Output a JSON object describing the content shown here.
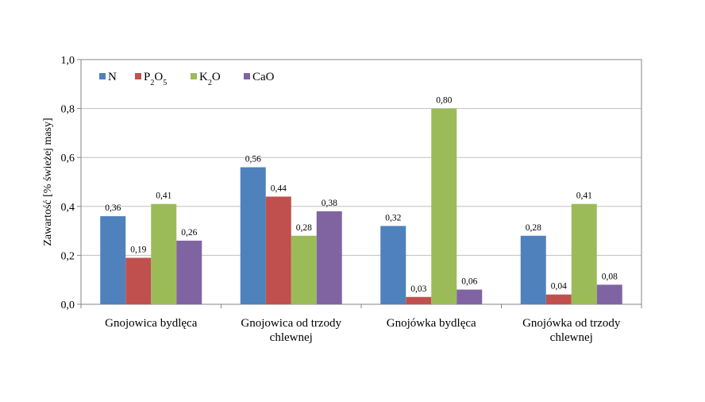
{
  "chart_data": {
    "type": "bar",
    "title": "",
    "xlabel": "",
    "ylabel": "Zawartość [% świeżej masy]",
    "ylim": [
      0,
      1.0
    ],
    "ytick_step": 0.2,
    "yticks": [
      "0,0",
      "0,2",
      "0,4",
      "0,6",
      "0,8",
      "1,0"
    ],
    "grid": true,
    "legend_position": "top-left",
    "categories": [
      [
        "Gnojowica bydlęca"
      ],
      [
        "Gnojowica od trzody",
        "chlewnej"
      ],
      [
        "Gnojówka bydlęca"
      ],
      [
        "Gnojówka od trzody",
        "chlewnej"
      ]
    ],
    "series": [
      {
        "name": "N",
        "base": "N",
        "sub": "",
        "tail": "",
        "color": "#4F81BD",
        "values": [
          0.36,
          0.56,
          0.32,
          0.28
        ],
        "labels": [
          "0,36",
          "0,56",
          "0,32",
          "0,28"
        ]
      },
      {
        "name": "P2O5",
        "base": "P",
        "sub": "2",
        "mid": "O",
        "sub2": "5",
        "color": "#C0504D",
        "values": [
          0.19,
          0.44,
          0.03,
          0.04
        ],
        "labels": [
          "0,19",
          "0,44",
          "0,03",
          "0,04"
        ]
      },
      {
        "name": "K2O",
        "base": "K",
        "sub": "2",
        "mid": "O",
        "sub2": "",
        "color": "#9BBB59",
        "values": [
          0.41,
          0.28,
          0.8,
          0.41
        ],
        "labels": [
          "0,41",
          "0,28",
          "0,80",
          "0,41"
        ]
      },
      {
        "name": "CaO",
        "base": "CaO",
        "sub": "",
        "tail": "",
        "color": "#8064A2",
        "values": [
          0.26,
          0.38,
          0.06,
          0.08
        ],
        "labels": [
          "0,26",
          "0,38",
          "0,06",
          "0,08"
        ]
      }
    ]
  }
}
